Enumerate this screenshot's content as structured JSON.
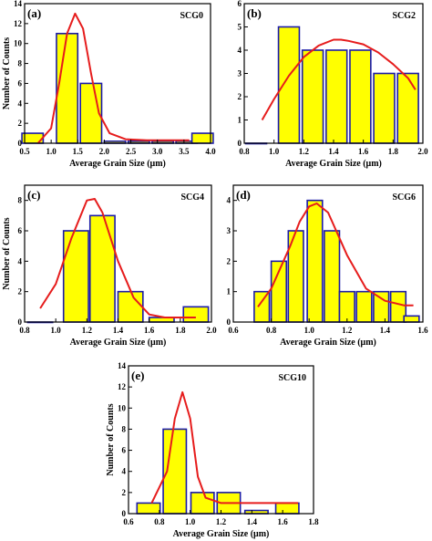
{
  "colors": {
    "bar_fill": "#ffff00",
    "bar_stroke": "#1a1aa8",
    "curve": "#e61c1c",
    "axis": "#000000"
  },
  "chart_data": [
    {
      "type": "bar",
      "panel_label": "(a)",
      "sample": "SCG0",
      "xlabel": "Average Grain Size (μm)",
      "ylabel": "Number of Counts",
      "xlim": [
        0.5,
        4.0
      ],
      "ylim": [
        0,
        14
      ],
      "xticks": [
        "0.5",
        "1.0",
        "1.5",
        "2.0",
        "2.5",
        "3.0",
        "3.5",
        "4.0"
      ],
      "yticks": [
        "0",
        "2",
        "4",
        "6",
        "8",
        "10",
        "12",
        "14"
      ],
      "bar_width": 0.4,
      "bars": [
        {
          "x": 0.65,
          "value": 1
        },
        {
          "x": 1.3,
          "value": 11
        },
        {
          "x": 1.75,
          "value": 6
        },
        {
          "x": 2.2,
          "value": 0.2
        },
        {
          "x": 2.65,
          "value": 0.2
        },
        {
          "x": 3.1,
          "value": 0.2
        },
        {
          "x": 3.55,
          "value": 0.2
        },
        {
          "x": 3.85,
          "value": 1
        }
      ],
      "fit_curve": {
        "x": [
          0.75,
          1.0,
          1.15,
          1.3,
          1.45,
          1.6,
          1.75,
          1.9,
          2.1,
          2.4,
          2.8,
          3.2,
          3.6
        ],
        "y": [
          0,
          1.5,
          6,
          11,
          13,
          11.5,
          7,
          3,
          1,
          0.4,
          0.3,
          0.3,
          0.3
        ]
      }
    },
    {
      "type": "bar",
      "panel_label": "(b)",
      "sample": "SCG2",
      "xlabel": "Average Grain Size (μm)",
      "ylabel": "",
      "xlim": [
        0.8,
        2.0
      ],
      "ylim": [
        0,
        6
      ],
      "xticks": [
        "0.8",
        "1.0",
        "1.2",
        "1.4",
        "1.6",
        "1.8",
        "2.0"
      ],
      "yticks": [
        "0",
        "1",
        "2",
        "3",
        "4",
        "5",
        "6"
      ],
      "bar_width": 0.14,
      "bars": [
        {
          "x": 0.88,
          "value": 0
        },
        {
          "x": 1.1,
          "value": 5
        },
        {
          "x": 1.26,
          "value": 4
        },
        {
          "x": 1.42,
          "value": 4
        },
        {
          "x": 1.58,
          "value": 4
        },
        {
          "x": 1.74,
          "value": 3
        },
        {
          "x": 1.9,
          "value": 3
        }
      ],
      "fit_curve": {
        "x": [
          0.92,
          1.0,
          1.1,
          1.2,
          1.3,
          1.4,
          1.45,
          1.5,
          1.6,
          1.7,
          1.8,
          1.9,
          1.95
        ],
        "y": [
          1.0,
          1.9,
          2.9,
          3.7,
          4.2,
          4.45,
          4.45,
          4.4,
          4.25,
          3.9,
          3.4,
          2.8,
          2.3
        ]
      }
    },
    {
      "type": "bar",
      "panel_label": "(c)",
      "sample": "SCG4",
      "xlabel": "Average Grain Size (μm)",
      "ylabel": "Number of Counts",
      "xlim": [
        0.8,
        2.0
      ],
      "ylim": [
        0,
        9
      ],
      "xticks": [
        "0.8",
        "1.0",
        "1.2",
        "1.4",
        "1.6",
        "1.8",
        "2.0"
      ],
      "yticks": [
        "0",
        "2",
        "4",
        "6",
        "8"
      ],
      "bar_width": 0.16,
      "bars": [
        {
          "x": 0.9,
          "value": 0
        },
        {
          "x": 1.13,
          "value": 6
        },
        {
          "x": 1.3,
          "value": 7
        },
        {
          "x": 1.48,
          "value": 2
        },
        {
          "x": 1.68,
          "value": 0.3
        },
        {
          "x": 1.9,
          "value": 1
        }
      ],
      "fit_curve": {
        "x": [
          0.9,
          1.0,
          1.1,
          1.2,
          1.25,
          1.3,
          1.4,
          1.5,
          1.6,
          1.7,
          1.8,
          1.9
        ],
        "y": [
          0.9,
          2.5,
          5.5,
          8.0,
          8.1,
          7.2,
          4.0,
          1.6,
          0.5,
          0.3,
          0.3,
          0.3
        ]
      }
    },
    {
      "type": "bar",
      "panel_label": "(d)",
      "sample": "SCG6",
      "xlabel": "Average Grain Size (μm)",
      "ylabel": "",
      "xlim": [
        0.6,
        1.6
      ],
      "ylim": [
        0,
        4.5
      ],
      "xticks": [
        "0.6",
        "0.8",
        "1.0",
        "1.2",
        "1.4",
        "1.6"
      ],
      "yticks": [
        "0",
        "1",
        "2",
        "3",
        "4"
      ],
      "bar_width": 0.08,
      "bars": [
        {
          "x": 0.75,
          "value": 1
        },
        {
          "x": 0.84,
          "value": 2
        },
        {
          "x": 0.93,
          "value": 3
        },
        {
          "x": 1.03,
          "value": 4
        },
        {
          "x": 1.12,
          "value": 3
        },
        {
          "x": 1.2,
          "value": 1
        },
        {
          "x": 1.29,
          "value": 1
        },
        {
          "x": 1.38,
          "value": 1
        },
        {
          "x": 1.47,
          "value": 1
        },
        {
          "x": 1.54,
          "value": 0.2
        }
      ],
      "fit_curve": {
        "x": [
          0.73,
          0.8,
          0.9,
          0.95,
          1.0,
          1.04,
          1.1,
          1.2,
          1.3,
          1.4,
          1.5,
          1.55
        ],
        "y": [
          0.5,
          1.1,
          2.5,
          3.3,
          3.8,
          3.9,
          3.6,
          2.2,
          1.1,
          0.7,
          0.55,
          0.55
        ]
      }
    },
    {
      "type": "bar",
      "panel_label": "(e)",
      "sample": "SCG10",
      "xlabel": "Average Grain Size (μm)",
      "ylabel": "Number of Counts",
      "xlim": [
        0.6,
        1.8
      ],
      "ylim": [
        0,
        14
      ],
      "xticks": [
        "0.6",
        "0.8",
        "1.0",
        "1.2",
        "1.4",
        "1.6",
        "1.8"
      ],
      "yticks": [
        "0",
        "2",
        "4",
        "6",
        "8",
        "10",
        "12",
        "14"
      ],
      "bar_width": 0.15,
      "bars": [
        {
          "x": 0.73,
          "value": 1
        },
        {
          "x": 0.9,
          "value": 8
        },
        {
          "x": 1.08,
          "value": 2
        },
        {
          "x": 1.25,
          "value": 2
        },
        {
          "x": 1.43,
          "value": 0.3
        },
        {
          "x": 1.63,
          "value": 1
        }
      ],
      "fit_curve": {
        "x": [
          0.75,
          0.85,
          0.9,
          0.95,
          1.0,
          1.05,
          1.1,
          1.2,
          1.4,
          1.6,
          1.7
        ],
        "y": [
          1.0,
          4.0,
          9.0,
          11.5,
          9.0,
          3.5,
          1.5,
          1.0,
          1.0,
          1.0,
          1.0
        ]
      }
    }
  ]
}
